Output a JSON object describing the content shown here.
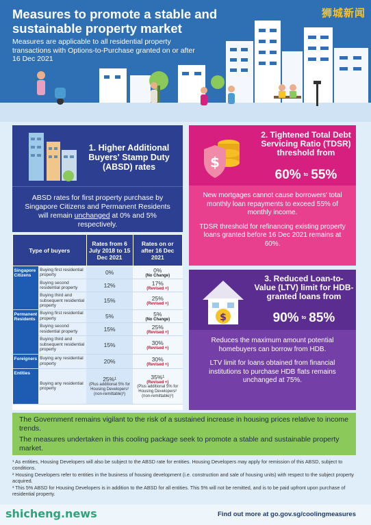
{
  "hero": {
    "title": "Measures to promote a stable and sustainable property market",
    "subtitle": "Measures are applicable to all residential property transactions with Options-to-Purchase granted on or after 16 Dec 2021",
    "brand": "狮城新闻"
  },
  "absd": {
    "title": "1. Higher Additional Buyers' Stamp Duty (ABSD) rates",
    "text_a": "ABSD rates for first property purchase by Singapore Citizens and Permanent Residents will remain ",
    "text_u": "unchanged",
    "text_b": " at 0% and 5% respectively."
  },
  "table": {
    "headers": [
      "Type of buyers",
      "Rates from 6 July 2018 to 15 Dec 2021",
      "Rates on or after 16 Dec 2021"
    ],
    "groups": [
      {
        "name": "Singapore Citizens",
        "rows": [
          {
            "desc": "Buying first residential property",
            "old": "0%",
            "new": "0%",
            "note": "(No Change)",
            "revised": false
          },
          {
            "desc": "Buying second residential property",
            "old": "12%",
            "new": "17%",
            "note": "(Revised +)",
            "revised": true
          },
          {
            "desc": "Buying third and subsequent residential property",
            "old": "15%",
            "new": "25%",
            "note": "(Revised +)",
            "revised": true
          }
        ]
      },
      {
        "name": "Permanent Residents",
        "rows": [
          {
            "desc": "Buying first residential property",
            "old": "5%",
            "new": "5%",
            "note": "(No Change)",
            "revised": false
          },
          {
            "desc": "Buying second residential property",
            "old": "15%",
            "new": "25%",
            "note": "(Revised +)",
            "revised": true
          },
          {
            "desc": "Buying third and subsequent residential property",
            "old": "15%",
            "new": "30%",
            "note": "(Revised +)",
            "revised": true
          }
        ]
      },
      {
        "name": "Foreigners",
        "rows": [
          {
            "desc": "Buying any residential property",
            "old": "20%",
            "new": "30%",
            "note": "(Revised +)",
            "revised": true
          }
        ]
      }
    ],
    "entities": {
      "name": "Entities",
      "desc": "Buying any residential property",
      "old": "25%¹",
      "old_note": "(Plus additional 5% for Housing Developers² (non-remittable)³)",
      "new": "35%¹",
      "new_note": "(Revised +)",
      "new_extra": "(Plus additional 5% for Housing Developers² (non-remittable)³)"
    }
  },
  "tdsr": {
    "title": "2. Tightened Total Debt Servicing Ratio (TDSR) threshold from",
    "from": "60%",
    "to_word": "to",
    "to": "55%",
    "p1": "New mortgages cannot cause borrowers' total monthly loan repayments to exceed 55% of monthly income.",
    "p2": "TDSR threshold for refinancing existing property loans granted before 16 Dec 2021 remains at 60%."
  },
  "ltv": {
    "title": "3. Reduced Loan-to-Value (LTV) limit for HDB-granted loans from",
    "from": "90%",
    "to_word": "to",
    "to": "85%",
    "p1": "Reduces the maximum amount potential homebuyers can borrow from HDB.",
    "p2": "LTV limit for loans obtained from financial institutions to purchase HDB flats remains unchanged at 75%."
  },
  "govt": {
    "p1": "The Government remains vigilant to the risk of a sustained increase in housing prices relative to income trends.",
    "p2": "The measures undertaken in this cooling package seek to promote a stable and sustainable property market."
  },
  "footnotes": [
    "¹ As entities, Housing Developers will also be subject to the ABSD rate for entities. Housing Developers may apply for remission of this ABSD, subject to conditions.",
    "² Housing Developers refer to entities in the business of housing development (i.e. construction and sale of housing units) with respect to the subject property acquired.",
    "³ This 5% ABSD for Housing Developers is in addition to the ABSD for all entities. This 5% will not be remitted, and is to be paid upfront upon purchase of residential property."
  ],
  "footer": {
    "watermark": "shicheng.news",
    "more": "Find out more at go.gov.sg/coolingmeasures"
  },
  "colors": {
    "absd": "#2d3f91",
    "tdsr": "#d71f7f",
    "ltv": "#5b2d91",
    "govt": "#8cc95b",
    "revised": "#c8102e"
  }
}
